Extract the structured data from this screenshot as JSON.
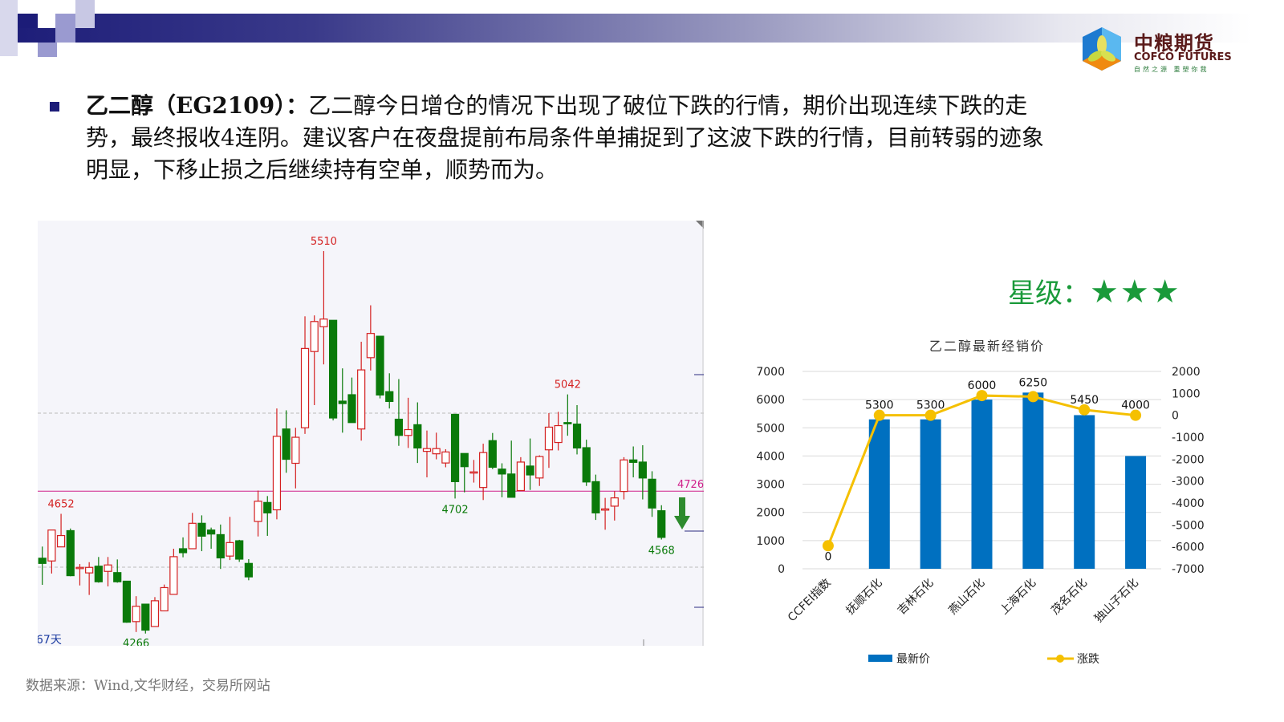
{
  "header": {
    "logo": {
      "cn": "中粮期货",
      "en": "COFCO FUTURES",
      "slogan": "自然之源 重塑你我"
    }
  },
  "body": {
    "heading": "乙二醇（EG2109）：",
    "lines": [
      "乙二醇今日增仓的情况下出现了破位下跌的行情，期价出现连续下跌的走",
      "势，最终报收4连阴。建议客户在夜盘提前布局条件单捕捉到了这波下跌的行情，目前转弱的迹象",
      "明显，下移止损之后继续持有空单，顺势而为。"
    ]
  },
  "rating": {
    "label": "星级：",
    "stars": 3,
    "max": 3,
    "color": "#1a9a3a"
  },
  "source": "数据来源：Wind,文华财经，交易所网站",
  "chart_data": [
    {
      "type": "candlestick",
      "period_label": "67天",
      "up_color": "#d42020",
      "down_color": "#0a7a0a",
      "reference_line": {
        "value": 4726,
        "label": "4726",
        "color": "#d0208a"
      },
      "annotations": [
        {
          "index": 30,
          "kind": "high",
          "text": "5510",
          "color": "#d42020"
        },
        {
          "index": 2,
          "kind": "high",
          "text": "4652",
          "color": "#d42020"
        },
        {
          "index": 10,
          "kind": "low",
          "text": "4266",
          "color": "#0a7a0a"
        },
        {
          "index": 44,
          "kind": "low",
          "text": "4702",
          "color": "#0a7a0a"
        },
        {
          "index": 56,
          "kind": "high",
          "text": "5042",
          "color": "#d42020"
        },
        {
          "index": 66,
          "kind": "low",
          "text": "4568",
          "color": "#0a7a0a"
        }
      ],
      "signal": "down-arrow",
      "ohlc": [
        [
          4507,
          4545,
          4420,
          4490
        ],
        [
          4498,
          4599,
          4457,
          4599
        ],
        [
          4544,
          4652,
          4544,
          4581
        ],
        [
          4597,
          4604,
          4448,
          4450
        ],
        [
          4475,
          4488,
          4418,
          4477
        ],
        [
          4459,
          4494,
          4387,
          4477
        ],
        [
          4481,
          4511,
          4427,
          4430
        ],
        [
          4464,
          4511,
          4415,
          4485
        ],
        [
          4460,
          4503,
          4427,
          4430
        ],
        [
          4432,
          4432,
          4296,
          4298
        ],
        [
          4300,
          4383,
          4266,
          4350
        ],
        [
          4357,
          4357,
          4261,
          4272
        ],
        [
          4284,
          4380,
          4284,
          4368
        ],
        [
          4335,
          4421,
          4335,
          4411
        ],
        [
          4389,
          4538,
          4389,
          4512
        ],
        [
          4538,
          4575,
          4510,
          4525
        ],
        [
          4538,
          4655,
          4538,
          4621
        ],
        [
          4621,
          4647,
          4530,
          4579
        ],
        [
          4599,
          4607,
          4538,
          4586
        ],
        [
          4584,
          4617,
          4472,
          4508
        ],
        [
          4514,
          4642,
          4501,
          4558
        ],
        [
          4564,
          4567,
          4495,
          4504
        ],
        [
          4490,
          4504,
          4435,
          4446
        ],
        [
          4627,
          4728,
          4578,
          4693
        ],
        [
          4689,
          4710,
          4580,
          4655
        ],
        [
          4665,
          4996,
          4634,
          4905
        ],
        [
          4929,
          4990,
          4786,
          4830
        ],
        [
          4817,
          4933,
          4735,
          4902
        ],
        [
          4933,
          5297,
          4913,
          5192
        ],
        [
          5182,
          5300,
          5007,
          5280
        ],
        [
          5263,
          5510,
          5140,
          5288
        ],
        [
          5284,
          5284,
          4957,
          4965
        ],
        [
          5020,
          5127,
          4917,
          5012
        ],
        [
          5041,
          5097,
          4950,
          4950
        ],
        [
          4929,
          5214,
          4891,
          5122
        ],
        [
          5162,
          5333,
          5120,
          5241
        ],
        [
          5232,
          5232,
          5029,
          5040
        ],
        [
          5051,
          5111,
          4996,
          5019
        ],
        [
          4961,
          5092,
          4874,
          4908
        ],
        [
          4908,
          5031,
          4867,
          4927
        ],
        [
          4943,
          5016,
          4818,
          4867
        ],
        [
          4856,
          4924,
          4771,
          4865
        ],
        [
          4848,
          4917,
          4830,
          4865
        ],
        [
          4818,
          4863,
          4804,
          4854
        ],
        [
          4977,
          4977,
          4702,
          4757
        ],
        [
          4849,
          4849,
          4722,
          4806
        ],
        [
          4787,
          4828,
          4754,
          4789
        ],
        [
          4738,
          4881,
          4697,
          4852
        ],
        [
          4891,
          4916,
          4798,
          4804
        ],
        [
          4798,
          4817,
          4706,
          4782
        ],
        [
          4782,
          4891,
          4706,
          4706
        ],
        [
          4728,
          4837,
          4728,
          4821
        ],
        [
          4808,
          4898,
          4730,
          4779
        ],
        [
          4769,
          4843,
          4743,
          4839
        ],
        [
          4861,
          4981,
          4802,
          4935
        ],
        [
          4885,
          4985,
          4859,
          4940
        ],
        [
          4950,
          5042,
          4907,
          4946
        ],
        [
          4945,
          5007,
          4846,
          4867
        ],
        [
          4868,
          4894,
          4743,
          4756
        ],
        [
          4757,
          4780,
          4632,
          4655
        ],
        [
          4665,
          4704,
          4600,
          4668
        ],
        [
          4677,
          4726,
          4630,
          4704
        ],
        [
          4725,
          4837,
          4699,
          4828
        ],
        [
          4828,
          4872,
          4771,
          4820
        ],
        [
          4821,
          4876,
          4699,
          4769
        ],
        [
          4765,
          4791,
          4642,
          4671
        ],
        [
          4662,
          4680,
          4568,
          4575
        ]
      ]
    },
    {
      "type": "bar+line",
      "title": "乙二醇最新经销价",
      "categories": [
        "CCFEI指数",
        "抚顺石化",
        "吉林石化",
        "燕山石化",
        "上海石化",
        "茂名石化",
        "独山子石化"
      ],
      "series": [
        {
          "name": "最新价",
          "type": "bar",
          "axis": "left",
          "color": "#0070c0",
          "values": [
            0,
            5300,
            5300,
            6000,
            6250,
            5450,
            4000
          ],
          "data_labels": [
            "0",
            "5300",
            "5300",
            "6000",
            "6250",
            "5450",
            "4000"
          ]
        },
        {
          "name": "涨跌",
          "type": "line",
          "axis": "right",
          "color": "#f5c000",
          "values": [
            -5950,
            0,
            0,
            900,
            850,
            250,
            0
          ]
        }
      ],
      "y_left": {
        "min": 0,
        "max": 7000,
        "ticks": [
          "7000",
          "6000",
          "5000",
          "4000",
          "3000",
          "2000",
          "1000",
          "0"
        ]
      },
      "y_right": {
        "min": -7000,
        "max": 2000,
        "ticks": [
          "2000",
          "1000",
          "0",
          "-1000",
          "-2000",
          "-3000",
          "-4000",
          "-5000",
          "-6000",
          "-7000"
        ]
      },
      "grid": true,
      "legend": "bottom"
    }
  ]
}
